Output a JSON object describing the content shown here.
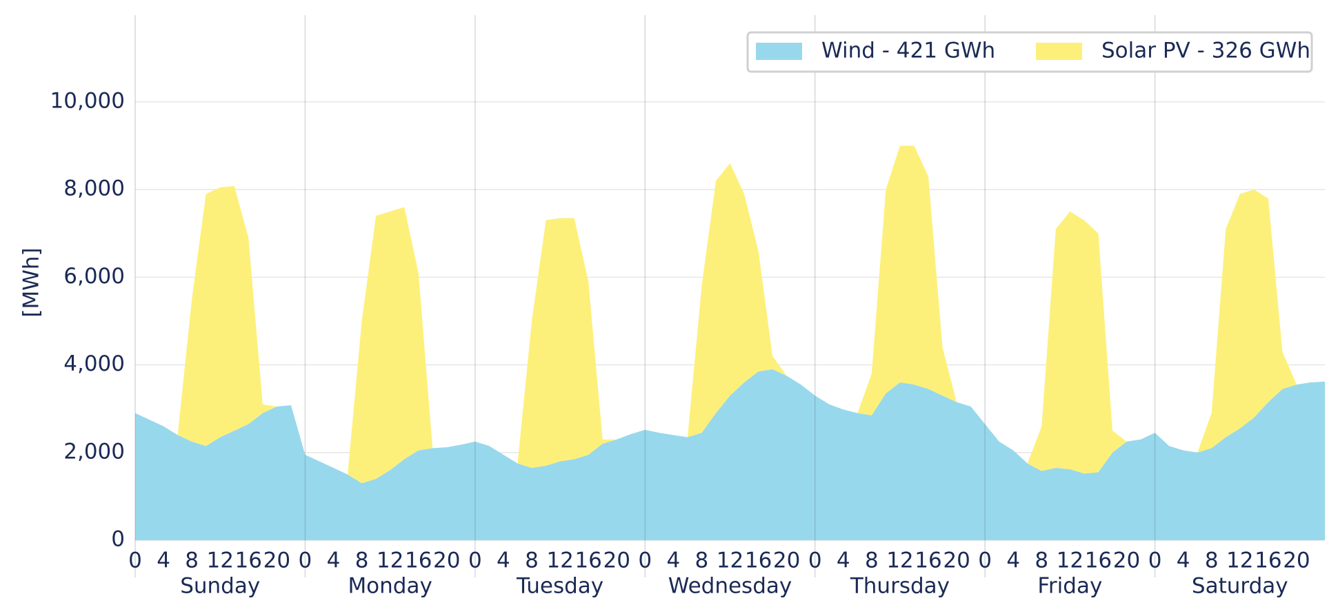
{
  "chart_data": {
    "type": "stacked-area",
    "y_label": "[MWh]",
    "x": [
      0,
      2,
      4,
      6,
      8,
      10,
      12,
      14,
      16,
      18,
      20,
      22,
      24,
      26,
      28,
      30,
      32,
      34,
      36,
      38,
      40,
      42,
      44,
      46,
      48,
      50,
      52,
      54,
      56,
      58,
      60,
      62,
      64,
      66,
      68,
      70,
      72,
      74,
      76,
      78,
      80,
      82,
      84,
      86,
      88,
      90,
      92,
      94,
      96,
      98,
      100,
      102,
      104,
      106,
      108,
      110,
      112,
      114,
      116,
      118,
      120,
      122,
      124,
      126,
      128,
      130,
      132,
      134,
      136,
      138,
      140,
      142,
      144,
      146,
      148,
      150,
      152,
      154,
      156,
      158,
      160,
      162,
      164,
      166,
      168
    ],
    "xlim": [
      0,
      168
    ],
    "xticks": [
      0,
      4,
      8,
      12,
      16,
      20,
      {
        "value": 24,
        "label": "0"
      },
      {
        "value": 28,
        "label": "4"
      },
      {
        "value": 32,
        "label": "8"
      },
      {
        "value": 36,
        "label": "12"
      },
      {
        "value": 40,
        "label": "16"
      },
      {
        "value": 44,
        "label": "20"
      },
      {
        "value": 48,
        "label": "0"
      },
      {
        "value": 52,
        "label": "4"
      },
      {
        "value": 56,
        "label": "8"
      },
      {
        "value": 60,
        "label": "12"
      },
      {
        "value": 64,
        "label": "16"
      },
      {
        "value": 68,
        "label": "20"
      },
      {
        "value": 72,
        "label": "0"
      },
      {
        "value": 76,
        "label": "4"
      },
      {
        "value": 80,
        "label": "8"
      },
      {
        "value": 84,
        "label": "12"
      },
      {
        "value": 88,
        "label": "16"
      },
      {
        "value": 92,
        "label": "20"
      },
      {
        "value": 96,
        "label": "0"
      },
      {
        "value": 100,
        "label": "4"
      },
      {
        "value": 104,
        "label": "8"
      },
      {
        "value": 108,
        "label": "12"
      },
      {
        "value": 112,
        "label": "16"
      },
      {
        "value": 116,
        "label": "20"
      },
      {
        "value": 120,
        "label": "0"
      },
      {
        "value": 124,
        "label": "4"
      },
      {
        "value": 128,
        "label": "8"
      },
      {
        "value": 132,
        "label": "12"
      },
      {
        "value": 136,
        "label": "16"
      },
      {
        "value": 140,
        "label": "20"
      },
      {
        "value": 144,
        "label": "0"
      },
      {
        "value": 148,
        "label": "4"
      },
      {
        "value": 152,
        "label": "8"
      },
      {
        "value": 156,
        "label": "12"
      },
      {
        "value": 160,
        "label": "16"
      },
      {
        "value": 164,
        "label": "20"
      }
    ],
    "x_group_labels": [
      "Sunday",
      "Monday",
      "Tuesday",
      "Wednesday",
      "Thursday",
      "Friday",
      "Saturday"
    ],
    "ylim": [
      0,
      11900
    ],
    "yticks": [
      0,
      {
        "value": 2000,
        "label": "2,000"
      },
      {
        "value": 4000,
        "label": "4,000"
      },
      {
        "value": 6000,
        "label": "6,000"
      },
      {
        "value": 8000,
        "label": "8,000"
      },
      {
        "value": 10000,
        "label": "10,000"
      }
    ],
    "grid": true,
    "legend": "upper right",
    "series": [
      {
        "name": "Wind - 421 GWh",
        "color": "#98d8ec",
        "values": [
          2900,
          2750,
          2600,
          2400,
          2250,
          2150,
          2350,
          2500,
          2650,
          2900,
          3050,
          3080,
          1950,
          1800,
          1650,
          1500,
          1300,
          1400,
          1600,
          1850,
          2050,
          2100,
          2120,
          2180,
          2250,
          2150,
          1950,
          1750,
          1650,
          1700,
          1800,
          1850,
          1950,
          2200,
          2300,
          2420,
          2520,
          2450,
          2400,
          2350,
          2450,
          2900,
          3300,
          3600,
          3850,
          3900,
          3750,
          3550,
          3300,
          3100,
          2980,
          2900,
          2850,
          3350,
          3600,
          3550,
          3450,
          3300,
          3150,
          3050,
          2650,
          2250,
          2050,
          1750,
          1580,
          1650,
          1620,
          1520,
          1550,
          2000,
          2250,
          2300,
          2450,
          2150,
          2050,
          2000,
          2100,
          2350,
          2550,
          2800,
          3150,
          3450,
          3550,
          3600,
          3620
        ]
      },
      {
        "name": "Solar PV - 326 GWh",
        "color": "#fdf07a",
        "values": [
          0,
          0,
          0,
          0,
          3250,
          5750,
          5700,
          5580,
          4250,
          200,
          0,
          0,
          0,
          0,
          0,
          0,
          3700,
          6000,
          5900,
          5750,
          4050,
          0,
          0,
          0,
          0,
          0,
          0,
          0,
          3350,
          5600,
          5550,
          5500,
          3950,
          100,
          0,
          0,
          0,
          0,
          0,
          0,
          3350,
          5300,
          5300,
          4300,
          2750,
          300,
          0,
          0,
          0,
          0,
          0,
          0,
          950,
          4650,
          5400,
          5450,
          4850,
          1100,
          0,
          0,
          0,
          0,
          0,
          0,
          1020,
          5450,
          5880,
          5780,
          5450,
          500,
          0,
          0,
          0,
          0,
          0,
          0,
          800,
          4750,
          5350,
          5200,
          4650,
          850,
          0,
          0,
          0
        ]
      }
    ]
  }
}
